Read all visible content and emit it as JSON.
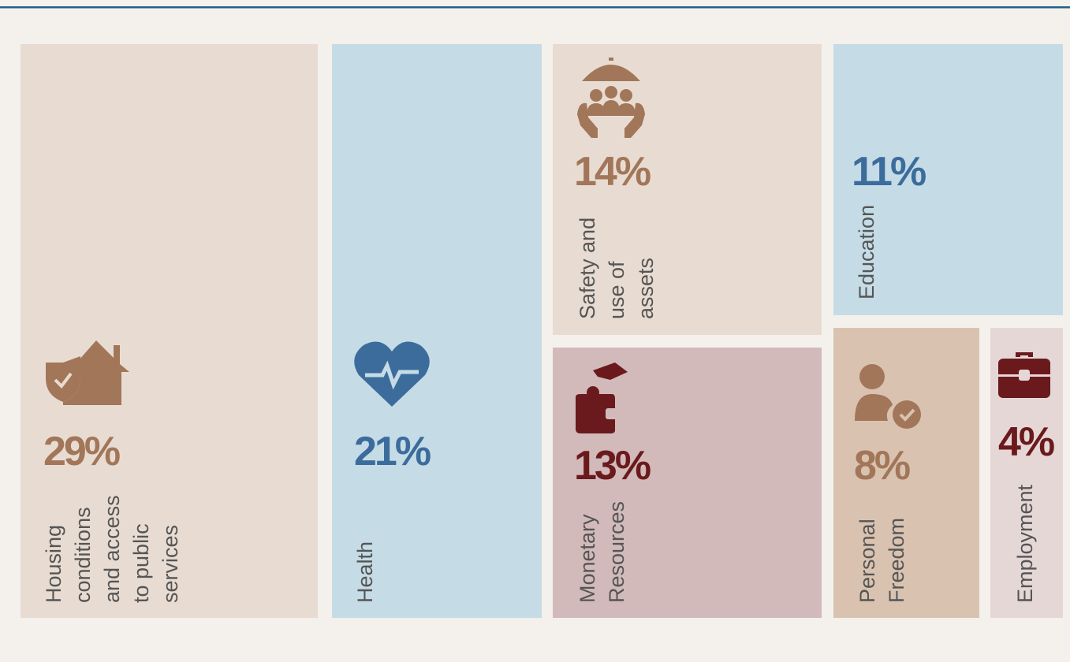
{
  "chart_data": {
    "type": "treemap",
    "categories": [
      "Housing conditions and access to public services",
      "Health",
      "Safety and use of assets",
      "Monetary Resources",
      "Education",
      "Personal Freedom",
      "Employment"
    ],
    "values": [
      29,
      21,
      14,
      13,
      11,
      8,
      4
    ],
    "value_labels": [
      "29%",
      "21%",
      "14%",
      "13%",
      "11%",
      "8%",
      "4%"
    ],
    "colors": [
      "#e8dcd2",
      "#c5dce6",
      "#e8dcd2",
      "#d2baba",
      "#c5dce6",
      "#d9c3b0",
      "#e6d7d7"
    ],
    "label_colors": [
      "#a27659",
      "#3c6c9c",
      "#a27659",
      "#6a1a1c",
      "#3c6c9c",
      "#a27659",
      "#6a1a1c"
    ]
  }
}
